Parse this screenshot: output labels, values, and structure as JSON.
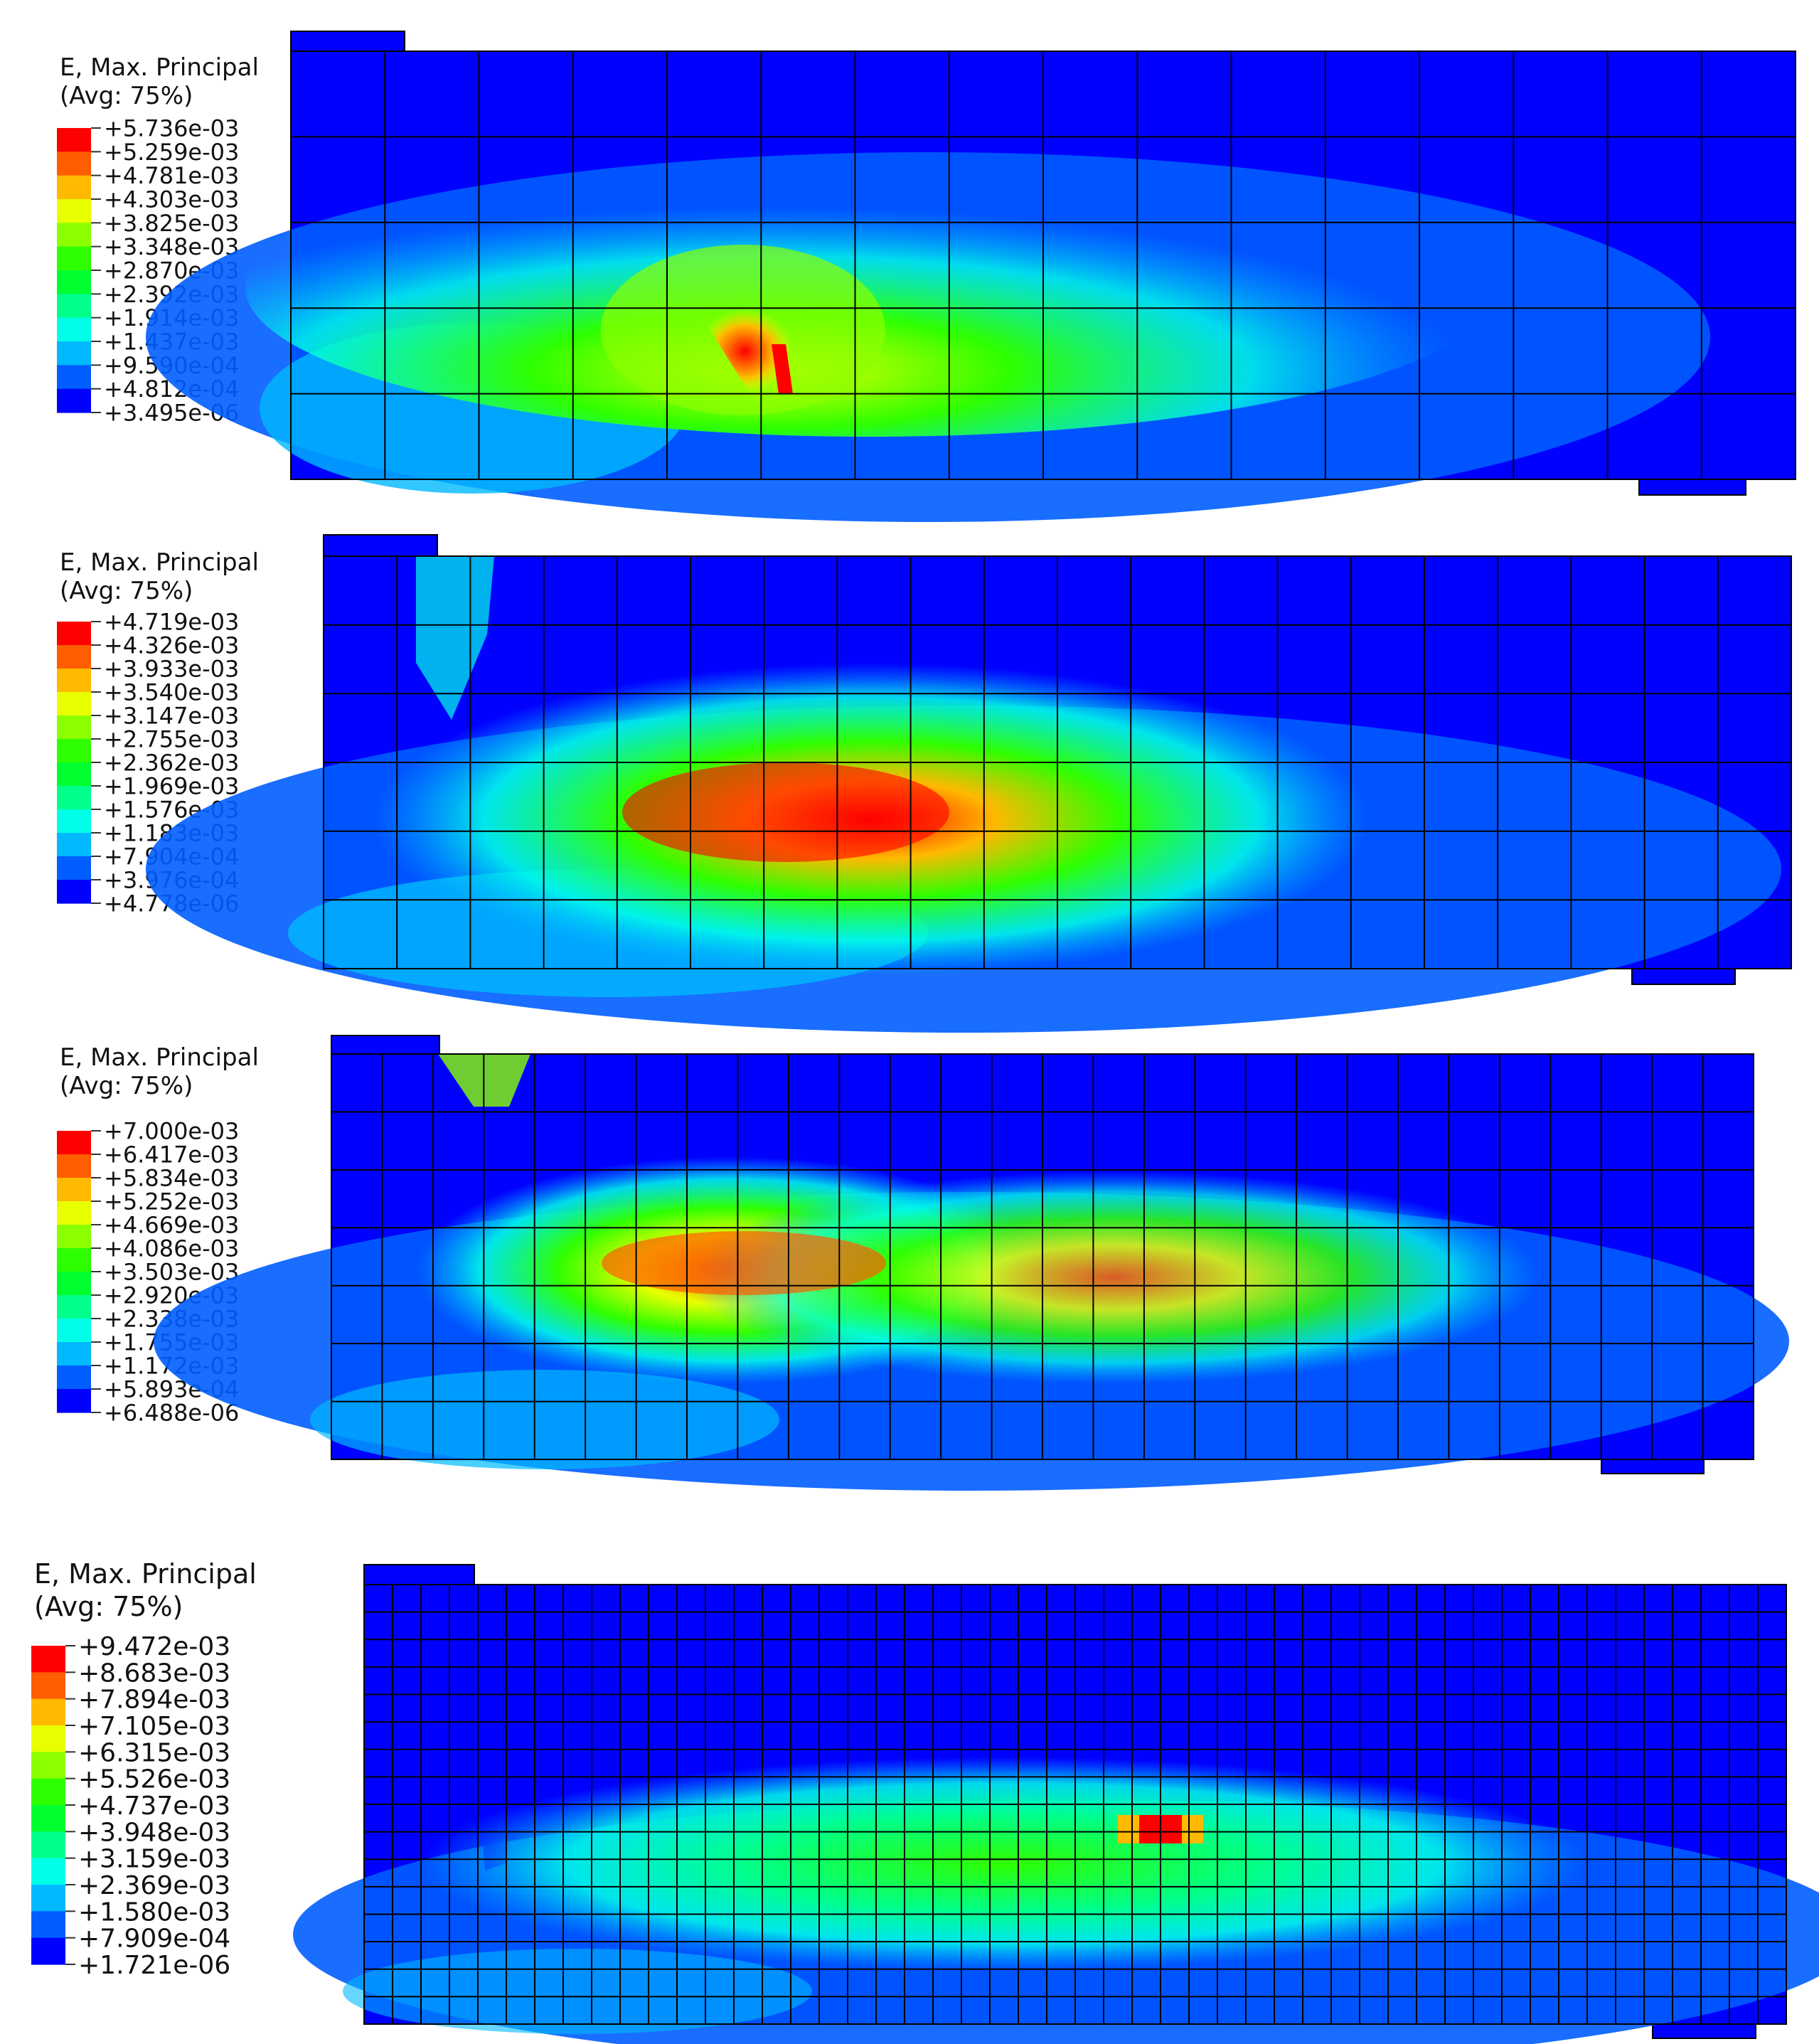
{
  "palette": [
    "#0000ff",
    "#005dff",
    "#00b9ff",
    "#00ffe8",
    "#00ff8b",
    "#00ff2e",
    "#2eff00",
    "#8bff00",
    "#e8ff00",
    "#ffb900",
    "#ff5d00",
    "#ff0000"
  ],
  "mesh_line_color": "#000000",
  "legends": [
    {
      "title": "E, Max. Principal",
      "subtitle": "(Avg: 75%)",
      "values": [
        "+5.736e-03",
        "+5.259e-03",
        "+4.781e-03",
        "+4.303e-03",
        "+3.825e-03",
        "+3.348e-03",
        "+2.870e-03",
        "+2.392e-03",
        "+1.914e-03",
        "+1.437e-03",
        "+9.590e-04",
        "+4.812e-04",
        "+3.495e-06"
      ]
    },
    {
      "title": "E, Max. Principal",
      "subtitle": "(Avg: 75%)",
      "values": [
        "+4.719e-03",
        "+4.326e-03",
        "+3.933e-03",
        "+3.540e-03",
        "+3.147e-03",
        "+2.755e-03",
        "+2.362e-03",
        "+1.969e-03",
        "+1.576e-03",
        "+1.183e-03",
        "+7.904e-04",
        "+3.976e-04",
        "+4.778e-06"
      ]
    },
    {
      "title": "E, Max. Principal",
      "subtitle": "(Avg: 75%)",
      "values": [
        "+7.000e-03",
        "+6.417e-03",
        "+5.834e-03",
        "+5.252e-03",
        "+4.669e-03",
        "+4.086e-03",
        "+3.503e-03",
        "+2.920e-03",
        "+2.338e-03",
        "+1.755e-03",
        "+1.172e-03",
        "+5.893e-04",
        "+6.488e-06"
      ]
    },
    {
      "title": "E, Max. Principal",
      "subtitle": "(Avg: 75%)",
      "values": [
        "+9.472e-03",
        "+8.683e-03",
        "+7.894e-03",
        "+7.105e-03",
        "+6.315e-03",
        "+5.526e-03",
        "+4.737e-03",
        "+3.948e-03",
        "+3.159e-03",
        "+2.369e-03",
        "+1.580e-03",
        "+7.909e-04",
        "+1.721e-06"
      ]
    }
  ]
}
